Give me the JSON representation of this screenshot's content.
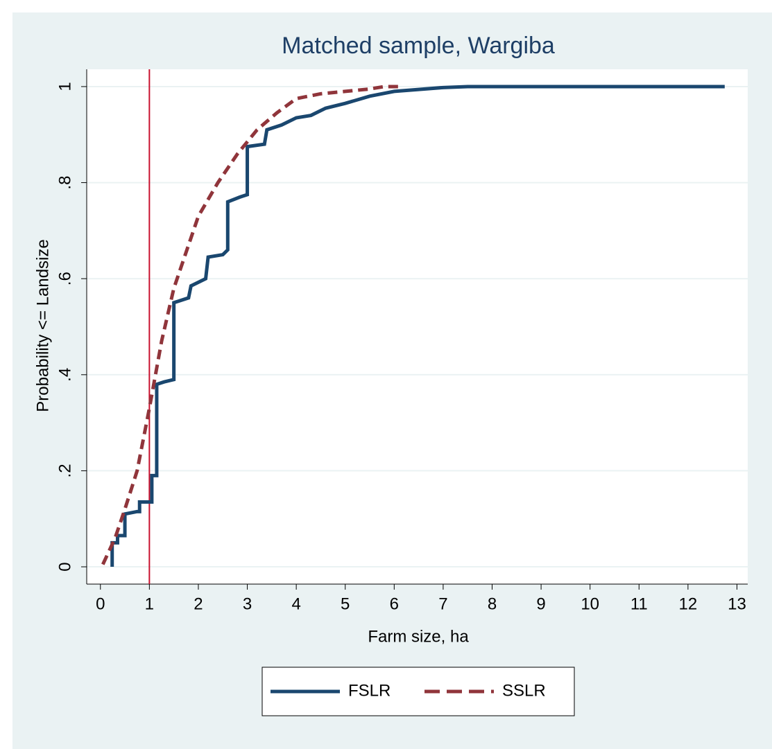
{
  "chart_data": {
    "type": "line",
    "title": "Matched sample, Wargiba",
    "x_label": "Farm size, ha",
    "y_label": "Probability <= Landsize",
    "xlim": [
      -0.28,
      13.22
    ],
    "ylim": [
      -0.036,
      1.036
    ],
    "xticks": [
      0,
      1,
      2,
      3,
      4,
      5,
      6,
      7,
      8,
      9,
      10,
      11,
      12,
      13
    ],
    "yticks": [
      0,
      {
        "value": 0.2,
        "label": ".2"
      },
      {
        "value": 0.4,
        "label": ".4"
      },
      {
        "value": 0.6,
        "label": ".6"
      },
      {
        "value": 0.8,
        "label": ".8"
      },
      1
    ],
    "grid": true,
    "xline": 1,
    "xline_color": "#c8102e",
    "legend": "bottom",
    "series": [
      {
        "name": "FSLR",
        "color": "#1a476f",
        "style": "solid",
        "x": [
          0.24,
          0.24,
          0.35,
          0.35,
          0.5,
          0.5,
          0.75,
          0.8,
          0.8,
          1.05,
          1.05,
          1.15,
          1.15,
          1.3,
          1.5,
          1.5,
          1.8,
          1.85,
          2.15,
          2.2,
          2.5,
          2.6,
          2.6,
          2.85,
          3.0,
          3.0,
          3.35,
          3.4,
          3.7,
          4.0,
          4.3,
          4.6,
          5.0,
          5.5,
          6.0,
          7.0,
          7.5,
          12.75
        ],
        "values": [
          0,
          0.05,
          0.05,
          0.065,
          0.065,
          0.11,
          0.115,
          0.115,
          0.135,
          0.135,
          0.19,
          0.19,
          0.38,
          0.385,
          0.39,
          0.55,
          0.56,
          0.585,
          0.6,
          0.645,
          0.65,
          0.66,
          0.76,
          0.77,
          0.775,
          0.875,
          0.88,
          0.91,
          0.92,
          0.935,
          0.94,
          0.955,
          0.965,
          0.98,
          0.99,
          0.998,
          1.0,
          1.0
        ]
      },
      {
        "name": "SSLR",
        "color": "#90353b",
        "style": "dashed",
        "x": [
          0.05,
          0.3,
          0.5,
          0.75,
          1.0,
          1.25,
          1.5,
          1.8,
          2.0,
          2.4,
          2.8,
          3.2,
          3.6,
          4.0,
          4.5,
          5.0,
          5.5,
          5.8,
          6.1
        ],
        "values": [
          0.005,
          0.06,
          0.12,
          0.2,
          0.33,
          0.47,
          0.58,
          0.67,
          0.73,
          0.8,
          0.86,
          0.91,
          0.945,
          0.975,
          0.985,
          0.99,
          0.995,
          1.0,
          1.0
        ]
      }
    ]
  }
}
